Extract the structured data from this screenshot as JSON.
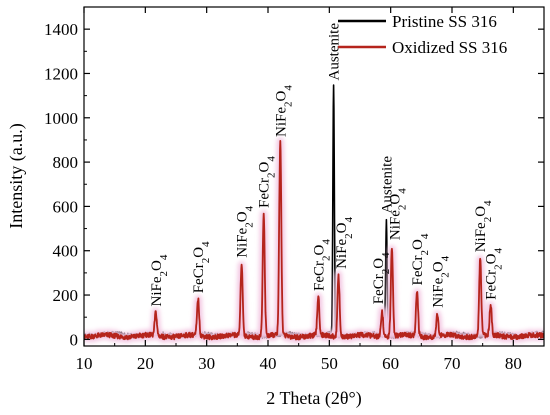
{
  "chart_data": {
    "type": "line",
    "title": "",
    "xlabel": "2 Theta (2θ°)",
    "ylabel": "Intensity (a.u.)",
    "xlim": [
      10,
      85
    ],
    "ylim": [
      -30,
      1500
    ],
    "xticks": [
      10,
      20,
      30,
      40,
      50,
      60,
      70,
      80
    ],
    "yticks": [
      0,
      200,
      400,
      600,
      800,
      1000,
      1200,
      1400
    ],
    "grid": false,
    "legend_position": "top-right",
    "series": [
      {
        "name": "Pristine SS 316",
        "color": "#000000",
        "baseline": 20,
        "peaks": [
          {
            "x": 50.7,
            "y": 1140
          },
          {
            "x": 59.3,
            "y": 540
          }
        ]
      },
      {
        "name": "Oxidized SS 316",
        "color": "#b5241c",
        "glow_color": "#f3c7e2",
        "baseline": 15,
        "peaks": [
          {
            "x": 21.7,
            "y": 120
          },
          {
            "x": 28.6,
            "y": 180
          },
          {
            "x": 35.7,
            "y": 340
          },
          {
            "x": 39.3,
            "y": 565
          },
          {
            "x": 42.0,
            "y": 885
          },
          {
            "x": 48.2,
            "y": 190
          },
          {
            "x": 51.5,
            "y": 290
          },
          {
            "x": 58.6,
            "y": 130
          },
          {
            "x": 60.2,
            "y": 420
          },
          {
            "x": 64.3,
            "y": 215
          },
          {
            "x": 67.6,
            "y": 115
          },
          {
            "x": 74.6,
            "y": 365
          },
          {
            "x": 76.3,
            "y": 150
          }
        ]
      }
    ],
    "annotations": [
      {
        "base": "NiFe",
        "sub1": "2",
        "mid": "O",
        "sub2": "4",
        "x": 21.7,
        "y": 130
      },
      {
        "base": "FeCr",
        "sub1": "2",
        "mid": "O",
        "sub2": "4",
        "x": 28.6,
        "y": 190
      },
      {
        "base": "NiFe",
        "sub1": "2",
        "mid": "O",
        "sub2": "4",
        "x": 35.7,
        "y": 350
      },
      {
        "base": "FeCr",
        "sub1": "2",
        "mid": "O",
        "sub2": "4",
        "x": 39.3,
        "y": 575
      },
      {
        "base": "NiFe",
        "sub1": "2",
        "mid": "O",
        "sub2": "4",
        "x": 42.0,
        "y": 895
      },
      {
        "base": "Austenite",
        "sub1": "",
        "mid": "",
        "sub2": "",
        "x": 50.7,
        "y": 1150
      },
      {
        "base": "FeCr",
        "sub1": "2",
        "mid": "O",
        "sub2": "4",
        "x": 48.2,
        "y": 200
      },
      {
        "base": "NiFe",
        "sub1": "2",
        "mid": "O",
        "sub2": "4",
        "x": 51.9,
        "y": 300
      },
      {
        "base": "FeCr",
        "sub1": "2",
        "mid": "O",
        "sub2": "4",
        "x": 57.9,
        "y": 140
      },
      {
        "base": "Austenite",
        "sub1": "",
        "mid": "",
        "sub2": "",
        "x": 59.3,
        "y": 550
      },
      {
        "base": "NiFe",
        "sub1": "2",
        "mid": "O",
        "sub2": "4",
        "x": 60.6,
        "y": 430
      },
      {
        "base": "FeCr",
        "sub1": "2",
        "mid": "O",
        "sub2": "4",
        "x": 64.3,
        "y": 225
      },
      {
        "base": "NiFe",
        "sub1": "2",
        "mid": "O",
        "sub2": "4",
        "x": 67.6,
        "y": 125
      },
      {
        "base": "NiFe",
        "sub1": "2",
        "mid": "O",
        "sub2": "4",
        "x": 74.6,
        "y": 375
      },
      {
        "base": "FeCr",
        "sub1": "2",
        "mid": "O",
        "sub2": "4",
        "x": 76.3,
        "y": 160
      }
    ]
  }
}
